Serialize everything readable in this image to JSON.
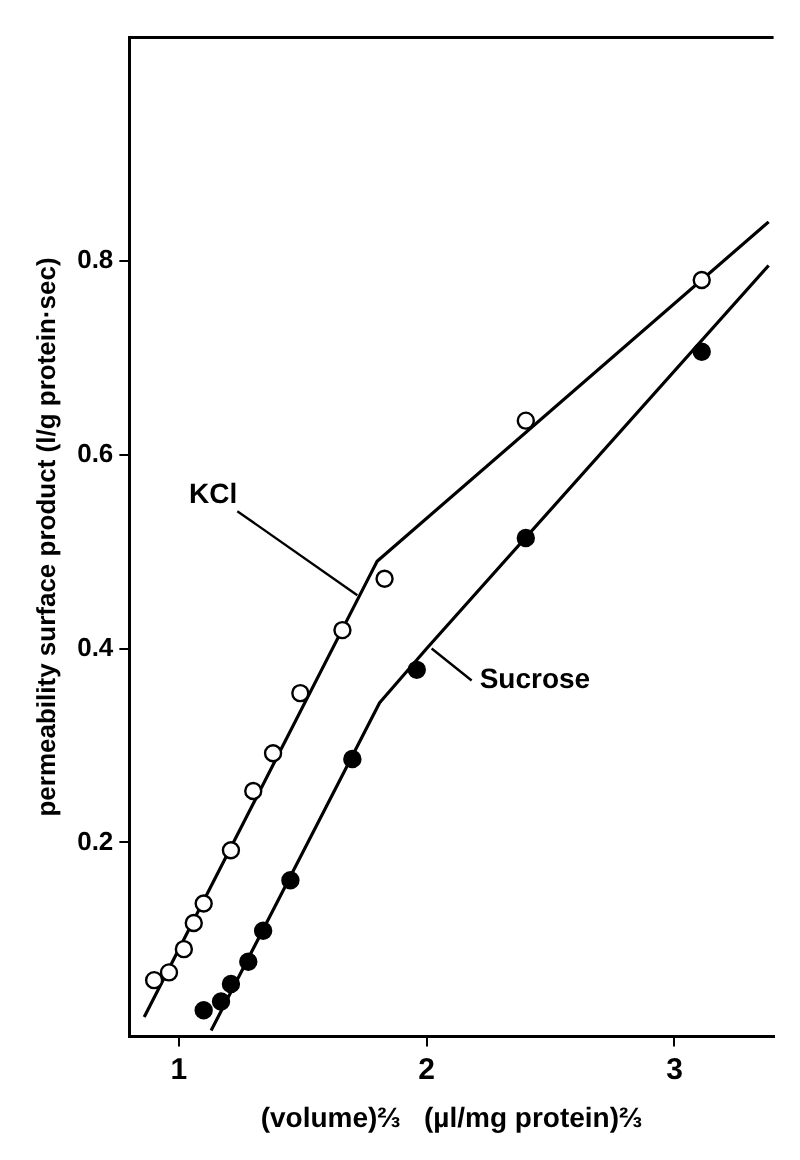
{
  "chart_data": {
    "type": "scatter",
    "xlabel": "(volume)⅔   (µl/mg protein)⅔",
    "ylabel": "permeability surface product (l/g protein·sec)",
    "xlim": [
      0.8,
      3.4
    ],
    "xticks": [
      1,
      2,
      3
    ],
    "ylim": [
      0,
      1.03
    ],
    "yticks": [
      0.2,
      0.4,
      0.6,
      0.8
    ],
    "grid": false,
    "legend": false,
    "marker": "circle",
    "annotations": [
      {
        "text": "KCl",
        "x": 1.72,
        "y": 0.455
      },
      {
        "text": "Sucrose",
        "x": 2.02,
        "y": 0.4
      }
    ],
    "series": [
      {
        "color": "#000000",
        "x": [
          0.9,
          0.96,
          1.02,
          1.06,
          1.1,
          1.21,
          1.3,
          1.38,
          1.49,
          1.66,
          1.83,
          2.4,
          3.11
        ],
        "values": [
          0.058,
          0.066,
          0.09,
          0.117,
          0.137,
          0.192,
          0.253,
          0.292,
          0.354,
          0.419,
          0.472,
          0.635,
          0.78
        ]
      },
      {
        "color": "#000000",
        "x": [
          1.1,
          1.17,
          1.21,
          1.28,
          1.34,
          1.45,
          1.7,
          1.96,
          2.4,
          3.11
        ],
        "values": [
          0.027,
          0.036,
          0.054,
          0.077,
          0.109,
          0.161,
          0.286,
          0.378,
          0.514,
          0.706
        ]
      },
      {
        "type": "line",
        "color": "#000000",
        "marker": "none",
        "x": [
          0.86,
          1.76,
          1.8,
          3.38
        ],
        "values": [
          0.02,
          0.47,
          0.49,
          0.84
        ]
      },
      {
        "type": "line",
        "color": "#000000",
        "marker": "none",
        "x": [
          1.13,
          1.81,
          2.0,
          3.38
        ],
        "values": [
          0.006,
          0.344,
          0.4,
          0.795
        ]
      }
    ]
  }
}
